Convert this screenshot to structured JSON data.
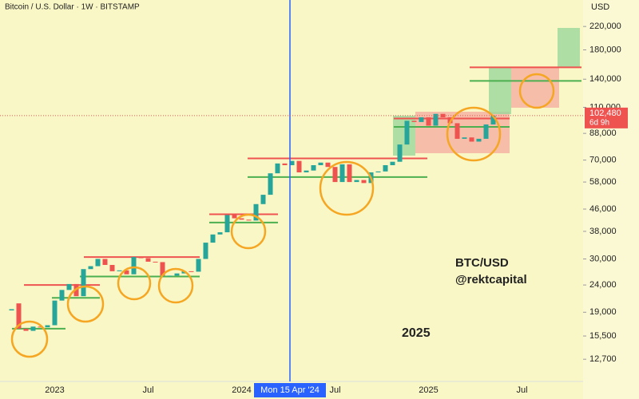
{
  "chart_data": {
    "type": "candlestick",
    "title": "Bitcoin / U.S. Dollar · 1W · BITSTAMP",
    "currency": "USD",
    "annotations": [
      "BTC/USD",
      "@rektcapital",
      "2025"
    ],
    "crosshair_label": "Mon 15 Apr '24",
    "log_scale": true,
    "up_color": "#26a69a",
    "down_color": "#ef5350",
    "categories": [
      null,
      null,
      null,
      null,
      null,
      null,
      "2023",
      null,
      null,
      null,
      null,
      null,
      null,
      null,
      null,
      null,
      null,
      null,
      null,
      "Jul",
      null,
      null,
      null,
      null,
      null,
      null,
      null,
      null,
      null,
      null,
      null,
      null,
      "2024",
      null,
      null,
      null,
      null,
      null,
      null,
      null,
      null,
      null,
      null,
      null,
      null,
      "Jul",
      null,
      null,
      null,
      null,
      null,
      null,
      null,
      null,
      null,
      null,
      null,
      null,
      "2025",
      null,
      null,
      null,
      null,
      null,
      null,
      null,
      null,
      null,
      null,
      null,
      null,
      "Jul",
      null,
      null,
      null,
      null,
      null,
      null,
      null,
      null
    ],
    "open": [
      19300,
      20500,
      16500,
      16200,
      16800,
      16700,
      17000,
      21000,
      23000,
      24200,
      21800,
      27500,
      28200,
      30000,
      28500,
      27000,
      27200,
      26300,
      30500,
      30200,
      29300,
      29200,
      26000,
      26000,
      26500,
      27000,
      26900,
      30000,
      34500,
      37000,
      37700,
      43700,
      42500,
      42000,
      41700,
      48000,
      52000,
      62500,
      68000,
      67000,
      69500,
      63000,
      64000,
      67000,
      68500,
      66000,
      58000,
      67500,
      58000,
      59000,
      57500,
      63000,
      63500,
      67000,
      69000,
      80000,
      98000,
      97000,
      101000,
      94000,
      104000,
      101000,
      96000,
      84000,
      85000,
      82000,
      84000,
      95000,
      null,
      null,
      null,
      null,
      null,
      null,
      null,
      null,
      null,
      null,
      null,
      null
    ],
    "close": [
      19500,
      16500,
      16200,
      16800,
      16700,
      17000,
      21000,
      23000,
      24200,
      21800,
      27500,
      28200,
      30000,
      28500,
      27000,
      27200,
      26300,
      30500,
      30200,
      29300,
      29200,
      26000,
      26000,
      26500,
      27000,
      26900,
      30000,
      34500,
      37000,
      37700,
      43700,
      42500,
      42000,
      41700,
      48000,
      52000,
      62500,
      68000,
      67000,
      69500,
      63000,
      64000,
      67000,
      68500,
      66000,
      58000,
      67500,
      58000,
      59000,
      57500,
      63000,
      63500,
      67000,
      69000,
      80000,
      98000,
      97000,
      101000,
      94000,
      104000,
      101000,
      96000,
      84000,
      85000,
      82000,
      84000,
      95000,
      102480,
      null,
      null,
      null,
      null,
      null,
      null,
      null,
      null,
      null,
      null,
      null,
      null
    ],
    "last_price": {
      "value": 102480,
      "label": "102,480"
    },
    "countdown": "6d 9h",
    "levels": [
      {
        "color": "#ef5350",
        "value": 24000
      },
      {
        "color": "#4caf50",
        "value": 21500
      },
      {
        "color": "#ef5350",
        "value": 30500
      },
      {
        "color": "#4caf50",
        "value": 25800
      },
      {
        "color": "#ef5350",
        "value": 44000
      },
      {
        "color": "#4caf50",
        "value": 41000
      },
      {
        "color": "#ef5350",
        "value": 71000
      },
      {
        "color": "#4caf50",
        "value": 60500
      },
      {
        "color": "#ef5350",
        "value": 100000
      },
      {
        "color": "#4caf50",
        "value": 93000
      },
      {
        "color": "#ef5350",
        "value": 155000
      },
      {
        "color": "#4caf50",
        "value": 138000
      },
      {
        "color": "#4caf50",
        "value": 16500
      }
    ],
    "ylim": [
      10500,
      276000
    ],
    "yticks": [
      {
        "value": 220000,
        "label": "220,000"
      },
      {
        "value": 180000,
        "label": "180,000"
      },
      {
        "value": 140000,
        "label": "140,000"
      },
      {
        "value": 110000,
        "label": "110,000"
      },
      {
        "value": 88000,
        "label": "88,000"
      },
      {
        "value": 70000,
        "label": "70,000"
      },
      {
        "value": 58000,
        "label": "58,000"
      },
      {
        "value": 46000,
        "label": "46,000"
      },
      {
        "value": 38000,
        "label": "38,000"
      },
      {
        "value": 30000,
        "label": "30,000"
      },
      {
        "value": 24000,
        "label": "24,000"
      },
      {
        "value": 19000,
        "label": "19,000"
      },
      {
        "value": 15500,
        "label": "15,500"
      },
      {
        "value": 12700,
        "label": "12,700"
      }
    ]
  }
}
